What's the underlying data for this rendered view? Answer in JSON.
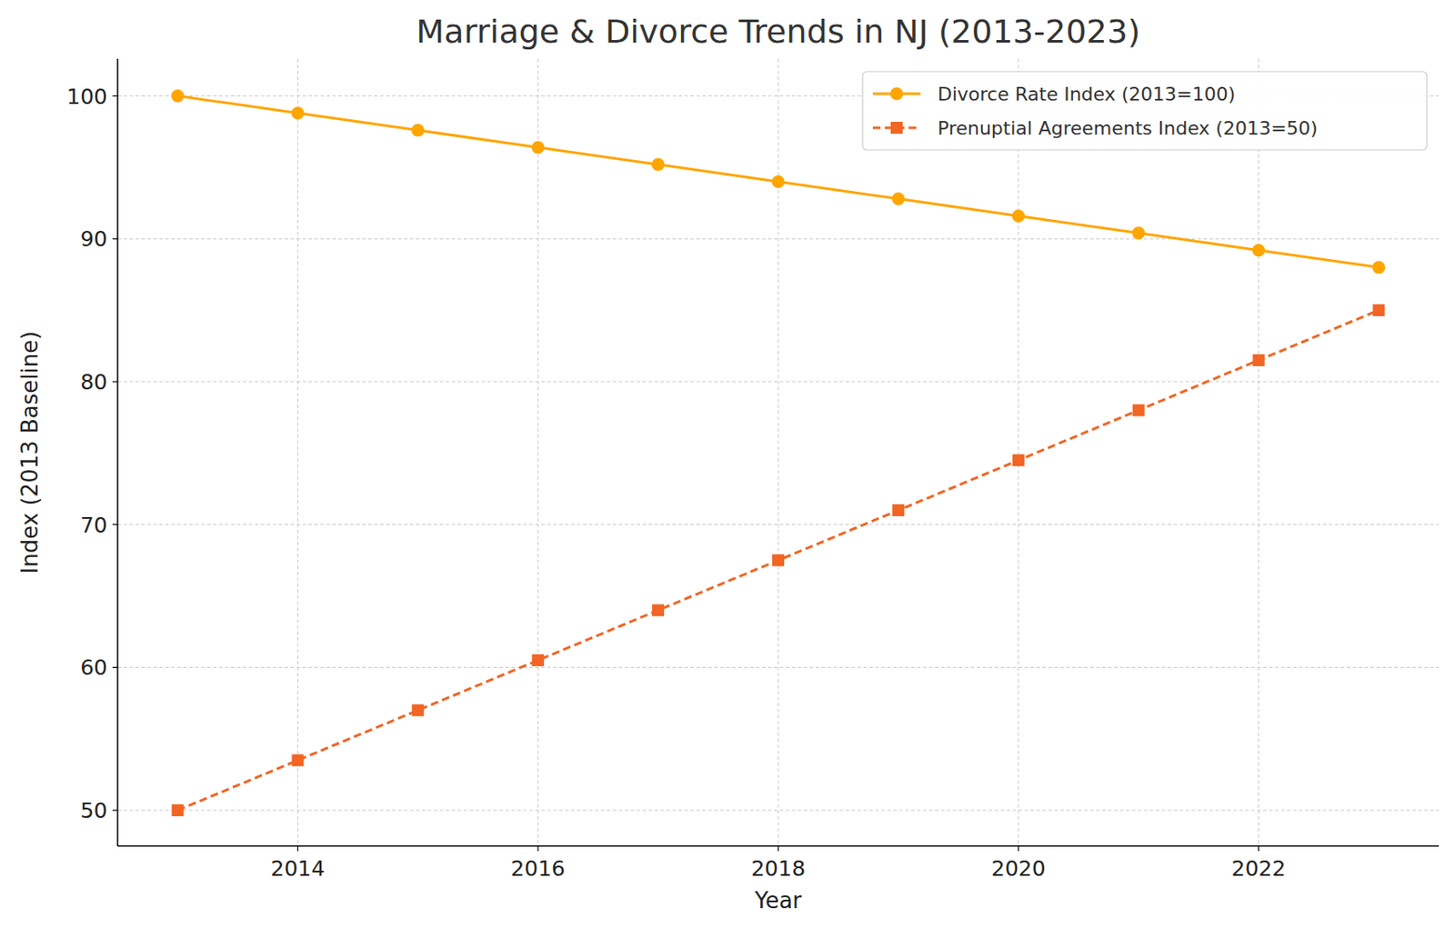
{
  "chart_data": {
    "type": "line",
    "title": "Marriage & Divorce Trends in NJ (2013-2023)",
    "x_label": "Year",
    "y_label": "Index (2013 Baseline)",
    "x": [
      2013,
      2014,
      2015,
      2016,
      2017,
      2018,
      2019,
      2020,
      2021,
      2022,
      2023
    ],
    "series": [
      {
        "name": "Divorce Rate Index (2013=100)",
        "color": "#FFA500",
        "marker": "circle",
        "line_style": "solid",
        "values": [
          100,
          98.8,
          97.6,
          96.4,
          95.2,
          94.0,
          92.8,
          91.6,
          90.4,
          89.2,
          88.0
        ]
      },
      {
        "name": "Prenuptial Agreements Index (2013=50)",
        "color": "#F26522",
        "marker": "square",
        "line_style": "dashed",
        "values": [
          50,
          53.5,
          57,
          60.5,
          64,
          67.5,
          71,
          74.5,
          78,
          81.5,
          85
        ]
      }
    ],
    "xlim": [
      2012.5,
      2023.5
    ],
    "ylim": [
      47.5,
      102.6
    ],
    "xticks": [
      2014,
      2016,
      2018,
      2020,
      2022
    ],
    "yticks": [
      50,
      60,
      70,
      80,
      90,
      100
    ],
    "grid": true,
    "legend": "upper right"
  }
}
